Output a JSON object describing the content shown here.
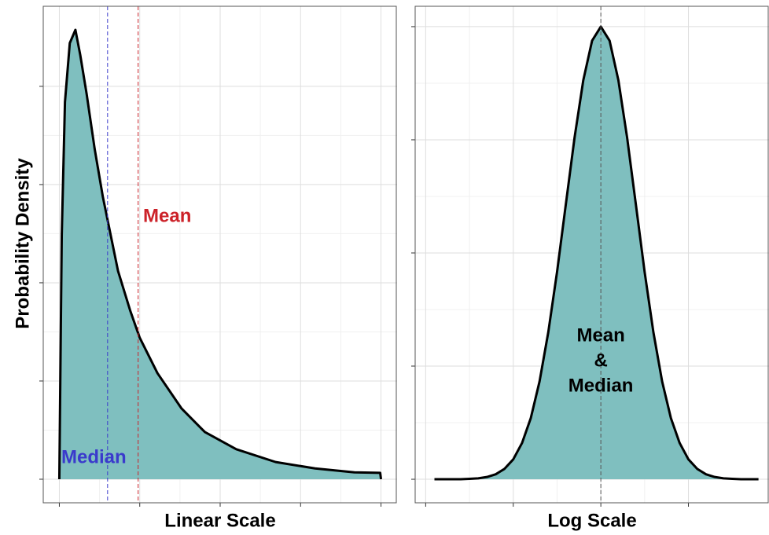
{
  "chart_data": [
    {
      "type": "area",
      "x_label": "Linear Scale",
      "y_label": "Probability Density",
      "x": [
        0,
        0.03,
        0.07,
        0.13,
        0.2,
        0.26,
        0.34,
        0.44,
        0.54,
        0.64,
        0.73,
        0.88,
        1.0,
        1.22,
        1.52,
        1.81,
        2.2,
        2.69,
        3.18,
        3.67,
        3.99,
        4.0
      ],
      "values": [
        0,
        0.496,
        0.768,
        0.888,
        0.915,
        0.864,
        0.784,
        0.672,
        0.576,
        0.496,
        0.424,
        0.344,
        0.288,
        0.216,
        0.144,
        0.096,
        0.061,
        0.035,
        0.022,
        0.014,
        0.013,
        0
      ],
      "color": "#7fbfbf",
      "line_color": "#000000",
      "xlim": [
        -0.2,
        4.2
      ],
      "xticks": [
        0,
        1,
        2,
        3,
        4
      ],
      "ylim": [
        -0.048,
        0.963
      ],
      "yticks": [
        0,
        0.2,
        0.4,
        0.6,
        0.8
      ],
      "grid": true,
      "vlines": [
        {
          "label": "Median",
          "value": 0.6,
          "color": "#3a3acc"
        },
        {
          "label": "Mean",
          "value": 0.98,
          "color": "#cc2229"
        }
      ]
    },
    {
      "type": "area",
      "x_label": "Log Scale",
      "x": [
        -1.9,
        -1.8,
        -1.7,
        -1.6,
        -1.5,
        -1.4,
        -1.3,
        -1.2,
        -1.1,
        -1.0,
        -0.9,
        -0.8,
        -0.7,
        -0.6,
        -0.5,
        -0.4,
        -0.3,
        -0.2,
        -0.1,
        0,
        0.1,
        0.2,
        0.3,
        0.4,
        0.5,
        0.6,
        0.7,
        0.8,
        0.9,
        1.0,
        1.1,
        1.2,
        1.3,
        1.4,
        1.5,
        1.6,
        1.7,
        1.8
      ],
      "values": [
        0,
        0,
        0,
        0,
        0.001,
        0.002,
        0.005,
        0.011,
        0.023,
        0.044,
        0.08,
        0.135,
        0.216,
        0.325,
        0.458,
        0.607,
        0.755,
        0.882,
        0.969,
        1,
        0.969,
        0.882,
        0.755,
        0.607,
        0.458,
        0.325,
        0.216,
        0.135,
        0.08,
        0.044,
        0.023,
        0.011,
        0.005,
        0.002,
        0.001,
        0,
        0,
        0
      ],
      "color": "#7fbfbf",
      "line_color": "#000000",
      "xlim": [
        -2.12,
        1.92
      ],
      "xticks": [
        -2,
        -1,
        0,
        1
      ],
      "ylim": [
        -0.052,
        1.045
      ],
      "yticks": [
        0,
        0.25,
        0.5,
        0.75,
        1
      ],
      "grid": true,
      "vlines": [
        {
          "label": [
            "Mean",
            "&",
            "Median"
          ],
          "value": 0,
          "color": "#555555"
        }
      ]
    }
  ]
}
